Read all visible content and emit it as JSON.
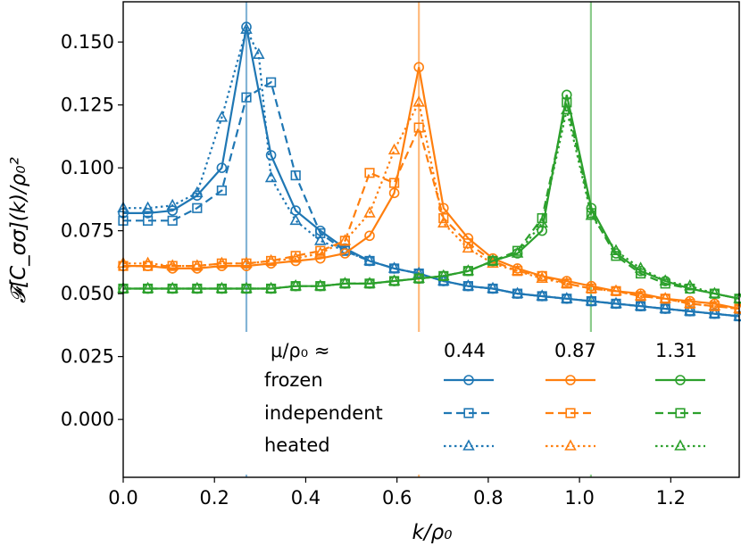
{
  "chart_data": {
    "type": "line",
    "title": "",
    "xlabel": "k/ρ₀",
    "ylabel": "𝓕[C_σσ](k)/ρ₀²",
    "xlim": [
      0.0,
      1.35
    ],
    "ylim": [
      -0.023,
      0.166
    ],
    "x_ticks": [
      0.0,
      0.2,
      0.4,
      0.6,
      0.8,
      1.0,
      1.2
    ],
    "x_tick_labels": [
      "0.0",
      "0.2",
      "0.4",
      "0.6",
      "0.8",
      "1.0",
      "1.2"
    ],
    "y_ticks": [
      0.0,
      0.025,
      0.05,
      0.075,
      0.1,
      0.125,
      0.15
    ],
    "y_tick_labels": [
      "0.000",
      "0.025",
      "0.050",
      "0.075",
      "0.100",
      "0.125",
      "0.150"
    ],
    "vlines": [
      {
        "x": 0.27,
        "color": "#1f77b4"
      },
      {
        "x": 0.648,
        "color": "#ff7f0e"
      },
      {
        "x": 1.025,
        "color": "#2ca02c"
      }
    ],
    "legend": {
      "header": "μ/ρ₀ ≈",
      "mu_values": [
        "0.44",
        "0.87",
        "1.31"
      ],
      "rows": [
        "frozen",
        "independent",
        "heated"
      ]
    },
    "colors": {
      "blue": "#1f77b4",
      "orange": "#ff7f0e",
      "green": "#2ca02c"
    },
    "series": [
      {
        "name": "frozen 0.44",
        "color": "#1f77b4",
        "marker": "circle",
        "dash": "solid",
        "points": [
          [
            0.0,
            0.082
          ],
          [
            0.054,
            0.082
          ],
          [
            0.108,
            0.083
          ],
          [
            0.162,
            0.089
          ],
          [
            0.216,
            0.1
          ],
          [
            0.27,
            0.156
          ],
          [
            0.324,
            0.105
          ],
          [
            0.378,
            0.083
          ],
          [
            0.432,
            0.075
          ],
          [
            0.486,
            0.068
          ],
          [
            0.54,
            0.063
          ],
          [
            0.594,
            0.06
          ],
          [
            0.648,
            0.058
          ],
          [
            0.702,
            0.055
          ],
          [
            0.756,
            0.053
          ],
          [
            0.81,
            0.052
          ],
          [
            0.864,
            0.05
          ],
          [
            0.918,
            0.049
          ],
          [
            0.972,
            0.048
          ],
          [
            1.026,
            0.047
          ],
          [
            1.08,
            0.046
          ],
          [
            1.134,
            0.045
          ],
          [
            1.188,
            0.044
          ],
          [
            1.242,
            0.043
          ],
          [
            1.296,
            0.042
          ],
          [
            1.35,
            0.041
          ]
        ]
      },
      {
        "name": "independent 0.44",
        "color": "#1f77b4",
        "marker": "square",
        "dash": "dashed",
        "points": [
          [
            0.0,
            0.079
          ],
          [
            0.054,
            0.079
          ],
          [
            0.108,
            0.079
          ],
          [
            0.162,
            0.084
          ],
          [
            0.216,
            0.091
          ],
          [
            0.27,
            0.128
          ],
          [
            0.324,
            0.134
          ],
          [
            0.378,
            0.097
          ],
          [
            0.432,
            0.074
          ],
          [
            0.486,
            0.067
          ],
          [
            0.54,
            0.063
          ],
          [
            0.594,
            0.06
          ],
          [
            0.648,
            0.058
          ],
          [
            0.702,
            0.055
          ],
          [
            0.756,
            0.053
          ],
          [
            0.81,
            0.052
          ],
          [
            0.864,
            0.05
          ],
          [
            0.918,
            0.049
          ],
          [
            0.972,
            0.048
          ],
          [
            1.026,
            0.047
          ],
          [
            1.08,
            0.046
          ],
          [
            1.134,
            0.045
          ],
          [
            1.188,
            0.044
          ],
          [
            1.242,
            0.043
          ],
          [
            1.296,
            0.042
          ],
          [
            1.35,
            0.041
          ]
        ]
      },
      {
        "name": "heated 0.44",
        "color": "#1f77b4",
        "marker": "triangle",
        "dash": "dotted",
        "points": [
          [
            0.0,
            0.084
          ],
          [
            0.054,
            0.084
          ],
          [
            0.108,
            0.085
          ],
          [
            0.162,
            0.09
          ],
          [
            0.216,
            0.12
          ],
          [
            0.27,
            0.155
          ],
          [
            0.297,
            0.145
          ],
          [
            0.324,
            0.096
          ],
          [
            0.378,
            0.079
          ],
          [
            0.432,
            0.071
          ],
          [
            0.486,
            0.067
          ],
          [
            0.54,
            0.063
          ],
          [
            0.594,
            0.06
          ],
          [
            0.648,
            0.058
          ],
          [
            0.702,
            0.055
          ],
          [
            0.756,
            0.053
          ],
          [
            0.81,
            0.052
          ],
          [
            0.864,
            0.05
          ],
          [
            0.918,
            0.049
          ],
          [
            0.972,
            0.048
          ],
          [
            1.026,
            0.047
          ],
          [
            1.08,
            0.046
          ],
          [
            1.134,
            0.045
          ],
          [
            1.188,
            0.044
          ],
          [
            1.242,
            0.043
          ],
          [
            1.296,
            0.042
          ],
          [
            1.35,
            0.041
          ]
        ]
      },
      {
        "name": "frozen 0.87",
        "color": "#ff7f0e",
        "marker": "circle",
        "dash": "solid",
        "points": [
          [
            0.0,
            0.061
          ],
          [
            0.054,
            0.061
          ],
          [
            0.108,
            0.06
          ],
          [
            0.162,
            0.06
          ],
          [
            0.216,
            0.061
          ],
          [
            0.27,
            0.061
          ],
          [
            0.324,
            0.062
          ],
          [
            0.378,
            0.063
          ],
          [
            0.432,
            0.064
          ],
          [
            0.486,
            0.066
          ],
          [
            0.54,
            0.073
          ],
          [
            0.594,
            0.09
          ],
          [
            0.648,
            0.14
          ],
          [
            0.702,
            0.084
          ],
          [
            0.756,
            0.072
          ],
          [
            0.81,
            0.064
          ],
          [
            0.864,
            0.06
          ],
          [
            0.918,
            0.057
          ],
          [
            0.972,
            0.055
          ],
          [
            1.026,
            0.053
          ],
          [
            1.08,
            0.051
          ],
          [
            1.134,
            0.05
          ],
          [
            1.188,
            0.048
          ],
          [
            1.242,
            0.047
          ],
          [
            1.296,
            0.046
          ],
          [
            1.35,
            0.044
          ]
        ]
      },
      {
        "name": "independent 0.87",
        "color": "#ff7f0e",
        "marker": "square",
        "dash": "dashed",
        "points": [
          [
            0.0,
            0.061
          ],
          [
            0.054,
            0.061
          ],
          [
            0.108,
            0.061
          ],
          [
            0.162,
            0.061
          ],
          [
            0.216,
            0.062
          ],
          [
            0.27,
            0.062
          ],
          [
            0.324,
            0.063
          ],
          [
            0.378,
            0.065
          ],
          [
            0.432,
            0.067
          ],
          [
            0.486,
            0.071
          ],
          [
            0.54,
            0.098
          ],
          [
            0.594,
            0.094
          ],
          [
            0.648,
            0.116
          ],
          [
            0.702,
            0.08
          ],
          [
            0.756,
            0.07
          ],
          [
            0.81,
            0.063
          ],
          [
            0.864,
            0.059
          ],
          [
            0.918,
            0.057
          ],
          [
            0.972,
            0.054
          ],
          [
            1.026,
            0.052
          ],
          [
            1.08,
            0.051
          ],
          [
            1.134,
            0.049
          ],
          [
            1.188,
            0.048
          ],
          [
            1.242,
            0.046
          ],
          [
            1.296,
            0.045
          ],
          [
            1.35,
            0.044
          ]
        ]
      },
      {
        "name": "heated 0.87",
        "color": "#ff7f0e",
        "marker": "triangle",
        "dash": "dotted",
        "points": [
          [
            0.0,
            0.062
          ],
          [
            0.054,
            0.062
          ],
          [
            0.108,
            0.061
          ],
          [
            0.162,
            0.061
          ],
          [
            0.216,
            0.062
          ],
          [
            0.27,
            0.062
          ],
          [
            0.324,
            0.063
          ],
          [
            0.378,
            0.064
          ],
          [
            0.432,
            0.066
          ],
          [
            0.486,
            0.071
          ],
          [
            0.54,
            0.082
          ],
          [
            0.594,
            0.107
          ],
          [
            0.648,
            0.126
          ],
          [
            0.702,
            0.078
          ],
          [
            0.756,
            0.068
          ],
          [
            0.81,
            0.062
          ],
          [
            0.864,
            0.059
          ],
          [
            0.918,
            0.056
          ],
          [
            0.972,
            0.054
          ],
          [
            1.026,
            0.052
          ],
          [
            1.08,
            0.051
          ],
          [
            1.134,
            0.049
          ],
          [
            1.188,
            0.048
          ],
          [
            1.242,
            0.046
          ],
          [
            1.296,
            0.045
          ],
          [
            1.35,
            0.044
          ]
        ]
      },
      {
        "name": "frozen 1.31",
        "color": "#2ca02c",
        "marker": "circle",
        "dash": "solid",
        "points": [
          [
            0.0,
            0.052
          ],
          [
            0.054,
            0.052
          ],
          [
            0.108,
            0.052
          ],
          [
            0.162,
            0.052
          ],
          [
            0.216,
            0.052
          ],
          [
            0.27,
            0.052
          ],
          [
            0.324,
            0.052
          ],
          [
            0.378,
            0.053
          ],
          [
            0.432,
            0.053
          ],
          [
            0.486,
            0.054
          ],
          [
            0.54,
            0.054
          ],
          [
            0.594,
            0.055
          ],
          [
            0.648,
            0.056
          ],
          [
            0.702,
            0.057
          ],
          [
            0.756,
            0.059
          ],
          [
            0.81,
            0.063
          ],
          [
            0.864,
            0.066
          ],
          [
            0.918,
            0.075
          ],
          [
            0.972,
            0.129
          ],
          [
            1.026,
            0.084
          ],
          [
            1.08,
            0.066
          ],
          [
            1.134,
            0.059
          ],
          [
            1.188,
            0.055
          ],
          [
            1.242,
            0.052
          ],
          [
            1.296,
            0.05
          ],
          [
            1.35,
            0.048
          ]
        ]
      },
      {
        "name": "independent 1.31",
        "color": "#2ca02c",
        "marker": "square",
        "dash": "dashed",
        "points": [
          [
            0.0,
            0.052
          ],
          [
            0.054,
            0.052
          ],
          [
            0.108,
            0.052
          ],
          [
            0.162,
            0.052
          ],
          [
            0.216,
            0.052
          ],
          [
            0.27,
            0.052
          ],
          [
            0.324,
            0.052
          ],
          [
            0.378,
            0.053
          ],
          [
            0.432,
            0.053
          ],
          [
            0.486,
            0.054
          ],
          [
            0.54,
            0.054
          ],
          [
            0.594,
            0.055
          ],
          [
            0.648,
            0.056
          ],
          [
            0.702,
            0.057
          ],
          [
            0.756,
            0.059
          ],
          [
            0.81,
            0.063
          ],
          [
            0.864,
            0.067
          ],
          [
            0.918,
            0.08
          ],
          [
            0.972,
            0.126
          ],
          [
            1.026,
            0.082
          ],
          [
            1.08,
            0.065
          ],
          [
            1.134,
            0.058
          ],
          [
            1.188,
            0.054
          ],
          [
            1.242,
            0.052
          ],
          [
            1.296,
            0.05
          ],
          [
            1.35,
            0.048
          ]
        ]
      },
      {
        "name": "heated 1.31",
        "color": "#2ca02c",
        "marker": "triangle",
        "dash": "dotted",
        "points": [
          [
            0.0,
            0.052
          ],
          [
            0.054,
            0.052
          ],
          [
            0.108,
            0.052
          ],
          [
            0.162,
            0.052
          ],
          [
            0.216,
            0.052
          ],
          [
            0.27,
            0.052
          ],
          [
            0.324,
            0.052
          ],
          [
            0.378,
            0.053
          ],
          [
            0.432,
            0.053
          ],
          [
            0.486,
            0.054
          ],
          [
            0.54,
            0.054
          ],
          [
            0.594,
            0.055
          ],
          [
            0.648,
            0.056
          ],
          [
            0.702,
            0.057
          ],
          [
            0.756,
            0.059
          ],
          [
            0.81,
            0.063
          ],
          [
            0.864,
            0.066
          ],
          [
            0.918,
            0.078
          ],
          [
            0.972,
            0.123
          ],
          [
            1.026,
            0.081
          ],
          [
            1.08,
            0.067
          ],
          [
            1.134,
            0.06
          ],
          [
            1.188,
            0.055
          ],
          [
            1.242,
            0.053
          ],
          [
            1.296,
            0.05
          ],
          [
            1.35,
            0.048
          ]
        ]
      }
    ]
  }
}
